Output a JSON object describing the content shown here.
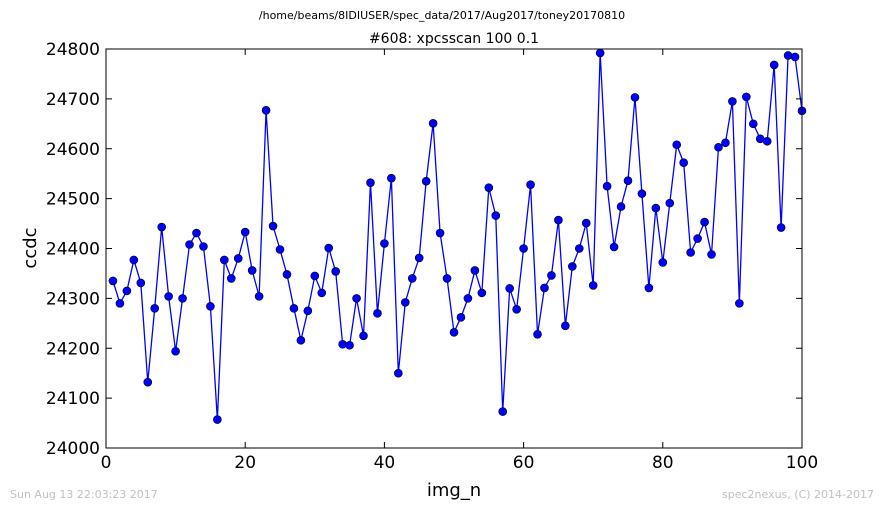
{
  "header": {
    "path": "/home/beams/8IDIUSER/spec_data/2017/Aug2017/toney20170810"
  },
  "footer": {
    "timestamp": "Sun Aug 13 22:03:23 2017",
    "credit": "spec2nexus, (C) 2014-2017"
  },
  "colors": {
    "line": "#0000ff",
    "marker": "#0000ff",
    "axes": "#000000",
    "footer_text": "#c0c0c0"
  },
  "chart_data": {
    "type": "line",
    "title": "#608: xpcsscan 100 0.1",
    "xlabel": "img_n",
    "ylabel": "ccdc",
    "xlim": [
      0,
      100
    ],
    "ylim": [
      24000,
      24800
    ],
    "xticks": [
      0,
      20,
      40,
      60,
      80,
      100
    ],
    "yticks": [
      24000,
      24100,
      24200,
      24300,
      24400,
      24500,
      24600,
      24700,
      24800
    ],
    "grid": false,
    "markers": true,
    "series": [
      {
        "x": [
          1,
          2,
          3,
          4,
          5,
          6,
          7,
          8,
          9,
          10,
          11,
          12,
          13,
          14,
          15,
          16,
          17,
          18,
          19,
          20,
          21,
          22,
          23,
          24,
          25,
          26,
          27,
          28,
          29,
          30,
          31,
          32,
          33,
          34,
          35,
          36,
          37,
          38,
          39,
          40,
          41,
          42,
          43,
          44,
          45,
          46,
          47,
          48,
          49,
          50,
          51,
          52,
          53,
          54,
          55,
          56,
          57,
          58,
          59,
          60,
          61,
          62,
          63,
          64,
          65,
          66,
          67,
          68,
          69,
          70,
          71,
          72,
          73,
          74,
          75,
          76,
          77,
          78,
          79,
          80,
          81,
          82,
          83,
          84,
          85,
          86,
          87,
          88,
          89,
          90,
          91,
          92,
          93,
          94,
          95,
          96,
          97,
          98,
          99,
          100
        ],
        "y": [
          24335,
          24290,
          24315,
          24377,
          24331,
          24132,
          24280,
          24443,
          24304,
          24194,
          24300,
          24408,
          24431,
          24404,
          24284,
          24057,
          24377,
          24340,
          24380,
          24433,
          24356,
          24304,
          24677,
          24445,
          24398,
          24348,
          24280,
          24216,
          24275,
          24345,
          24311,
          24401,
          24354,
          24208,
          24206,
          24300,
          24225,
          24532,
          24270,
          24410,
          24541,
          24150,
          24292,
          24340,
          24381,
          24535,
          24651,
          24431,
          24340,
          24232,
          24262,
          24300,
          24356,
          24311,
          24522,
          24466,
          24073,
          24320,
          24278,
          24400,
          24528,
          24228,
          24321,
          24346,
          24457,
          24245,
          24364,
          24400,
          24451,
          24326,
          24792,
          24525,
          24403,
          24484,
          24536,
          24703,
          24510,
          24321,
          24481,
          24372,
          24491,
          24608,
          24572,
          24392,
          24420,
          24453,
          24388,
          24603,
          24612,
          24695,
          24290,
          24704,
          24650,
          24620,
          24615,
          24768,
          24442,
          24787,
          24784,
          24676
        ]
      }
    ]
  }
}
